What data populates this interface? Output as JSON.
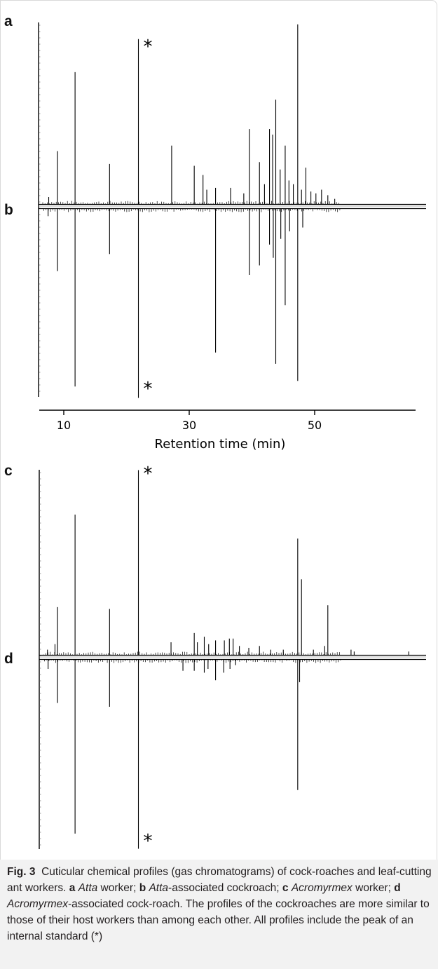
{
  "chart_data": [
    {
      "type": "line",
      "panel_label_top": "a",
      "panel_label_bottom": "b",
      "series_top": "a",
      "series_bottom": "b",
      "xlabel": "Retention time (min)",
      "x_ticks": [
        "10",
        "30",
        "50"
      ],
      "xlim": [
        6,
        68
      ],
      "internal_standard_marker": "*",
      "peaks_top": [
        {
          "x": 7.6,
          "h": 0.04
        },
        {
          "x": 9.0,
          "h": 0.29
        },
        {
          "x": 11.8,
          "h": 0.72
        },
        {
          "x": 17.3,
          "h": 0.22
        },
        {
          "x": 21.9,
          "h": 0.9
        },
        {
          "x": 27.2,
          "h": 0.32
        },
        {
          "x": 30.8,
          "h": 0.21
        },
        {
          "x": 32.2,
          "h": 0.16
        },
        {
          "x": 32.8,
          "h": 0.08
        },
        {
          "x": 34.2,
          "h": 0.09
        },
        {
          "x": 36.6,
          "h": 0.09
        },
        {
          "x": 38.7,
          "h": 0.06
        },
        {
          "x": 39.6,
          "h": 0.41
        },
        {
          "x": 41.2,
          "h": 0.23
        },
        {
          "x": 42.0,
          "h": 0.11
        },
        {
          "x": 42.8,
          "h": 0.41
        },
        {
          "x": 43.3,
          "h": 0.38
        },
        {
          "x": 43.8,
          "h": 0.57
        },
        {
          "x": 44.5,
          "h": 0.19
        },
        {
          "x": 45.3,
          "h": 0.32
        },
        {
          "x": 45.9,
          "h": 0.13
        },
        {
          "x": 46.6,
          "h": 0.11
        },
        {
          "x": 47.3,
          "h": 0.98
        },
        {
          "x": 47.9,
          "h": 0.08
        },
        {
          "x": 48.6,
          "h": 0.2
        },
        {
          "x": 49.4,
          "h": 0.07
        },
        {
          "x": 50.2,
          "h": 0.06
        },
        {
          "x": 51.1,
          "h": 0.08
        },
        {
          "x": 52.1,
          "h": 0.05
        },
        {
          "x": 53.2,
          "h": 0.03
        }
      ],
      "peaks_bottom": [
        {
          "x": 7.5,
          "h": 0.04
        },
        {
          "x": 9.0,
          "h": 0.33
        },
        {
          "x": 11.8,
          "h": 0.94
        },
        {
          "x": 17.3,
          "h": 0.24
        },
        {
          "x": 21.9,
          "h": 1.0
        },
        {
          "x": 34.2,
          "h": 0.76
        },
        {
          "x": 39.6,
          "h": 0.35
        },
        {
          "x": 41.2,
          "h": 0.3
        },
        {
          "x": 42.8,
          "h": 0.19
        },
        {
          "x": 43.4,
          "h": 0.26
        },
        {
          "x": 43.8,
          "h": 0.82
        },
        {
          "x": 44.6,
          "h": 0.16
        },
        {
          "x": 45.3,
          "h": 0.51
        },
        {
          "x": 46.0,
          "h": 0.12
        },
        {
          "x": 47.3,
          "h": 0.91
        },
        {
          "x": 48.1,
          "h": 0.1
        }
      ]
    },
    {
      "type": "line",
      "panel_label_top": "c",
      "panel_label_bottom": "d",
      "series_top": "c",
      "series_bottom": "d",
      "xlim": [
        6,
        68
      ],
      "internal_standard_marker": "*",
      "peaks_top": [
        {
          "x": 7.4,
          "h": 0.03
        },
        {
          "x": 8.6,
          "h": 0.06
        },
        {
          "x": 9.0,
          "h": 0.26
        },
        {
          "x": 11.8,
          "h": 0.76
        },
        {
          "x": 17.3,
          "h": 0.25
        },
        {
          "x": 21.9,
          "h": 1.0
        },
        {
          "x": 27.1,
          "h": 0.07
        },
        {
          "x": 30.8,
          "h": 0.12
        },
        {
          "x": 31.3,
          "h": 0.07
        },
        {
          "x": 32.4,
          "h": 0.1
        },
        {
          "x": 33.1,
          "h": 0.06
        },
        {
          "x": 34.2,
          "h": 0.08
        },
        {
          "x": 35.6,
          "h": 0.08
        },
        {
          "x": 36.4,
          "h": 0.09
        },
        {
          "x": 37.0,
          "h": 0.09
        },
        {
          "x": 38.0,
          "h": 0.05
        },
        {
          "x": 39.5,
          "h": 0.04
        },
        {
          "x": 41.2,
          "h": 0.05
        },
        {
          "x": 43.0,
          "h": 0.03
        },
        {
          "x": 45.0,
          "h": 0.03
        },
        {
          "x": 47.3,
          "h": 0.63
        },
        {
          "x": 47.9,
          "h": 0.41
        },
        {
          "x": 49.8,
          "h": 0.03
        },
        {
          "x": 51.6,
          "h": 0.05
        },
        {
          "x": 52.1,
          "h": 0.27
        },
        {
          "x": 55.8,
          "h": 0.03
        },
        {
          "x": 56.3,
          "h": 0.02
        },
        {
          "x": 65.0,
          "h": 0.02
        }
      ],
      "peaks_bottom": [
        {
          "x": 7.5,
          "h": 0.05
        },
        {
          "x": 9.0,
          "h": 0.23
        },
        {
          "x": 11.8,
          "h": 0.92
        },
        {
          "x": 17.3,
          "h": 0.25
        },
        {
          "x": 21.9,
          "h": 1.0
        },
        {
          "x": 29.0,
          "h": 0.06
        },
        {
          "x": 30.8,
          "h": 0.06
        },
        {
          "x": 32.4,
          "h": 0.07
        },
        {
          "x": 33.0,
          "h": 0.05
        },
        {
          "x": 34.2,
          "h": 0.11
        },
        {
          "x": 35.5,
          "h": 0.07
        },
        {
          "x": 36.5,
          "h": 0.05
        },
        {
          "x": 37.4,
          "h": 0.03
        },
        {
          "x": 47.3,
          "h": 0.69
        },
        {
          "x": 47.6,
          "h": 0.12
        }
      ]
    }
  ],
  "caption": {
    "fig_label": "Fig. 3",
    "intro": "Cuticular chemical profiles (gas chromatograms) of cock-roaches and leaf-cutting ant workers.",
    "items": [
      {
        "letter": "a",
        "genus": "Atta",
        "rest": " worker;"
      },
      {
        "letter": "b",
        "genus": "Atta",
        "rest": "-associated cockroach;"
      },
      {
        "letter": "c",
        "genus": "Acromyrmex",
        "rest": " worker;"
      },
      {
        "letter": "d",
        "genus": "Acromyrmex",
        "rest": "-associated cock-roach."
      }
    ],
    "tail": "The profiles of the cockroaches are more similar to those of their host workers than among each other. All profiles include the peak of an internal standard (*)"
  }
}
